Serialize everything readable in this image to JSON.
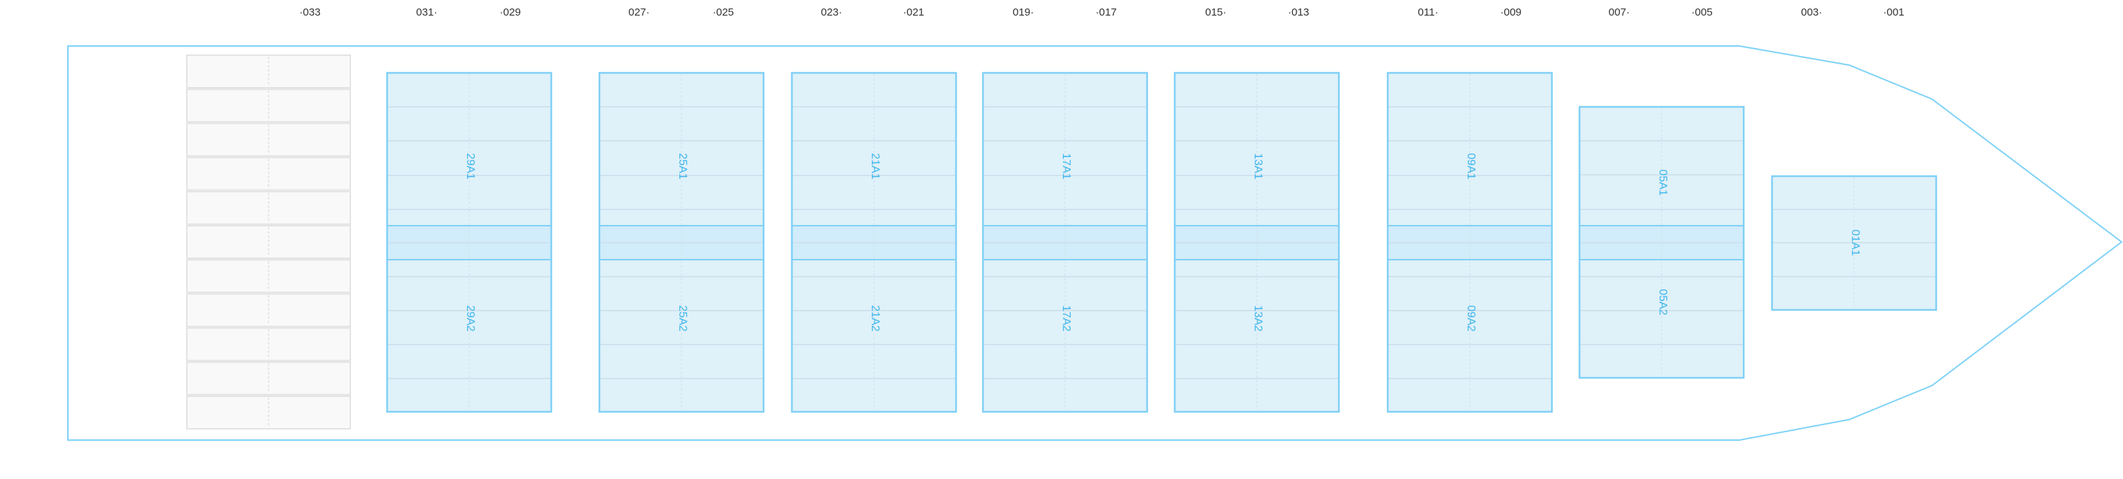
{
  "ruler": {
    "labels": [
      "·033",
      "031·",
      "·029",
      "027·",
      "·025",
      "023·",
      "·021",
      "019·",
      "·017",
      "015·",
      "·013",
      "011·",
      "·009",
      "007·",
      "·005",
      "003·",
      "·001"
    ]
  },
  "bays": [
    {
      "id": "29",
      "labels": [
        "29A1",
        "29A2"
      ]
    },
    {
      "id": "25",
      "labels": [
        "25A1",
        "25A2"
      ]
    },
    {
      "id": "21",
      "labels": [
        "21A1",
        "21A2"
      ]
    },
    {
      "id": "17",
      "labels": [
        "17A1",
        "17A2"
      ]
    },
    {
      "id": "13",
      "labels": [
        "13A1",
        "13A2"
      ]
    },
    {
      "id": "09",
      "labels": [
        "09A1",
        "09A2"
      ]
    },
    {
      "id": "05",
      "labels": [
        "05A1",
        "05A2"
      ]
    },
    {
      "id": "01",
      "labels": [
        "01A1"
      ]
    }
  ],
  "colors": {
    "hull": "#7fd2f7",
    "bay_fill": "#dff1f9",
    "bay_border": "#80d0f6",
    "hatch_band": "#d1ecfa",
    "row_line": "#cfe2ee",
    "label": "#3fb6ec",
    "inactive_fill": "#f9f9f9",
    "inactive_border": "#e3e3e3"
  }
}
